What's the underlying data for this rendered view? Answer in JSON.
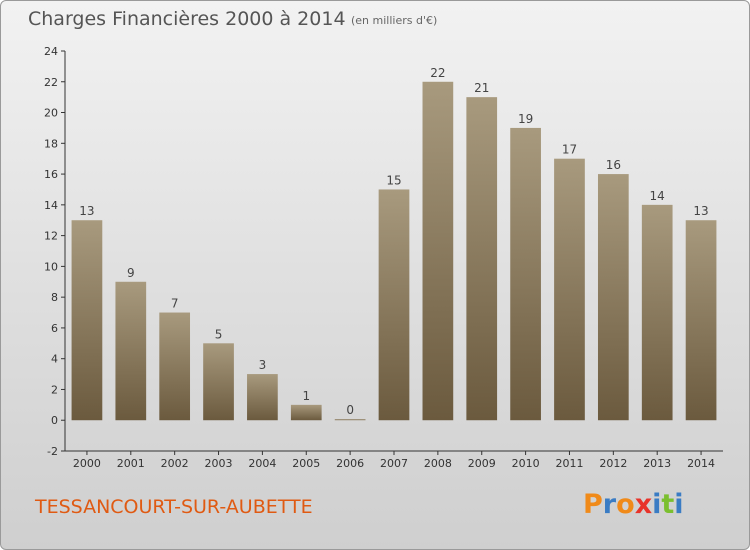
{
  "header": {
    "title": "Charges Financières 2000 à 2014",
    "subtitle": "(en milliers d'€)"
  },
  "footer": {
    "commune": "TESSANCOURT-SUR-AUBETTE",
    "logo_letters": [
      "P",
      "r",
      "o",
      "x",
      "i",
      "t",
      "i"
    ],
    "logo_colors": [
      "#f08a19",
      "#3a7cc4",
      "#f08a19",
      "#e8332a",
      "#3a7cc4",
      "#7bbf2f",
      "#3a7cc4"
    ]
  },
  "chart_data": {
    "type": "bar",
    "categories": [
      "2000",
      "2001",
      "2002",
      "2003",
      "2004",
      "2005",
      "2006",
      "2007",
      "2008",
      "2009",
      "2010",
      "2011",
      "2012",
      "2013",
      "2014"
    ],
    "values": [
      13,
      9,
      7,
      5,
      3,
      1,
      0,
      15,
      22,
      21,
      19,
      17,
      16,
      14,
      13
    ],
    "title": "Charges Financières 2000 à 2014",
    "unit_label": "(en milliers d'€)",
    "ylim": [
      -2,
      24
    ],
    "yticks": [
      -2,
      0,
      2,
      4,
      6,
      8,
      10,
      12,
      14,
      16,
      18,
      20,
      22,
      24
    ],
    "grid": false,
    "bar_color_top": "#a89a7e",
    "bar_color_bottom": "#6b5a3e"
  }
}
